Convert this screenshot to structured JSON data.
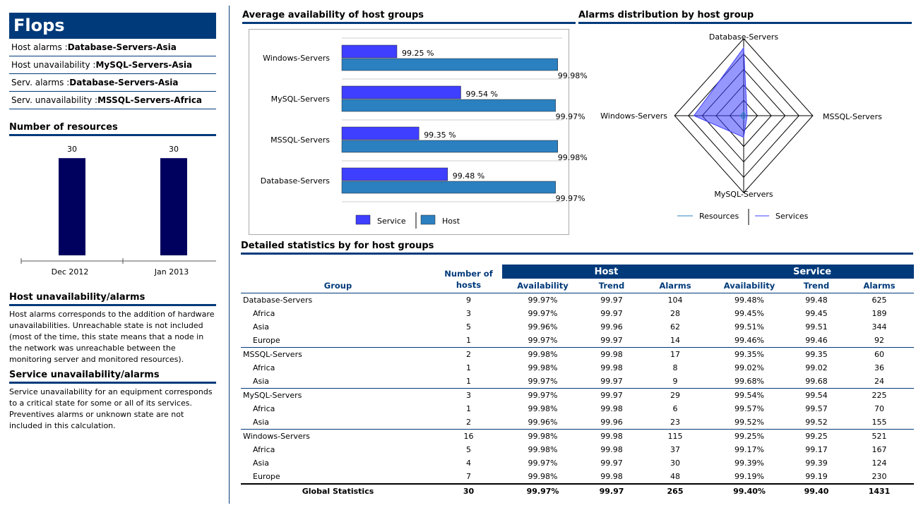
{
  "app_title": "Flops",
  "summary": [
    {
      "label": "Host alarms :",
      "value": "Database-Servers-Asia"
    },
    {
      "label": "Host unavailability :",
      "value": "MySQL-Servers-Asia"
    },
    {
      "label": "Serv. alarms :",
      "value": "Database-Servers-Asia"
    },
    {
      "label": "Serv. unavailability :",
      "value": "MSSQL-Servers-Africa"
    }
  ],
  "resources": {
    "title": "Number of resources",
    "chart_data": {
      "type": "bar",
      "categories": [
        "Dec 2012",
        "Jan 2013"
      ],
      "values": [
        30,
        30
      ],
      "color": "#00005f"
    }
  },
  "host_section": {
    "title": "Host unavailability/alarms",
    "text": "Host alarms corresponds to the addition of hardware unavailabilities. Unreachable state is not included (most of the time, this state means that a node in the network was unreachable between the monitoring server and monitored resources)."
  },
  "service_section": {
    "title": "Service unavailability/alarms",
    "text": "Service unavailability for an equipment corresponds to a critical state for some or all of its services. Preventives alarms or unknown state are not included in this calculation."
  },
  "availability": {
    "title": "Average availability of host groups",
    "chart_data": {
      "type": "bar",
      "orientation": "horizontal",
      "categories": [
        "Windows-Servers",
        "MySQL-Servers",
        "MSSQL-Servers",
        "Database-Servers"
      ],
      "series": [
        {
          "name": "Service",
          "color": "#3f3fff",
          "values": [
            99.25,
            99.54,
            99.35,
            99.48
          ],
          "labels": [
            "99.25 %",
            "99.54 %",
            "99.35 %",
            "99.48 %"
          ]
        },
        {
          "name": "Host",
          "color": "#2b80c0",
          "values": [
            99.98,
            99.97,
            99.98,
            99.97
          ],
          "labels": [
            "99.98%",
            "99.97%",
            "99.98%",
            "99.97%"
          ]
        }
      ],
      "xlim": [
        99.0,
        100.0
      ]
    }
  },
  "alarms_radar": {
    "title": "Alarms distribution by host group",
    "chart_data": {
      "type": "radar",
      "axes": [
        "Database-Servers",
        "MSSQL-Servers",
        "MySQL-Servers",
        "Windows-Servers"
      ],
      "series": [
        {
          "name": "Resources",
          "color": "#2b80c0",
          "values": [
            0.05,
            0.03,
            0.05,
            0.05
          ]
        },
        {
          "name": "Services",
          "color": "#3f3fff",
          "values": [
            0.88,
            0.05,
            0.28,
            0.72
          ]
        }
      ],
      "rings": 5
    }
  },
  "table": {
    "title": "Detailed statistics by for host groups",
    "headers": {
      "group": "Group",
      "hosts": "Number of hosts",
      "host": "Host",
      "service": "Service",
      "availability": "Availability",
      "trend": "Trend",
      "alarms": "Alarms"
    },
    "rows": [
      {
        "kind": "grp",
        "cells": [
          "Database-Servers",
          "9",
          "99.97%",
          "99.97",
          "104",
          "99.48%",
          "99.48",
          "625"
        ]
      },
      {
        "kind": "sub",
        "cells": [
          "Africa",
          "3",
          "99.97%",
          "99.97",
          "28",
          "99.45%",
          "99.45",
          "189"
        ]
      },
      {
        "kind": "sub",
        "cells": [
          "Asia",
          "5",
          "99.96%",
          "99.96",
          "62",
          "99.51%",
          "99.51",
          "344"
        ]
      },
      {
        "kind": "sub",
        "cells": [
          "Europe",
          "1",
          "99.97%",
          "99.97",
          "14",
          "99.46%",
          "99.46",
          "92"
        ]
      },
      {
        "kind": "grp2",
        "cells": [
          "MSSQL-Servers",
          "2",
          "99.98%",
          "99.98",
          "17",
          "99.35%",
          "99.35",
          "60"
        ]
      },
      {
        "kind": "sub",
        "cells": [
          "Africa",
          "1",
          "99.98%",
          "99.98",
          "8",
          "99.02%",
          "99.02",
          "36"
        ]
      },
      {
        "kind": "sub",
        "cells": [
          "Asia",
          "1",
          "99.97%",
          "99.97",
          "9",
          "99.68%",
          "99.68",
          "24"
        ]
      },
      {
        "kind": "grp2",
        "cells": [
          "MySQL-Servers",
          "3",
          "99.97%",
          "99.97",
          "29",
          "99.54%",
          "99.54",
          "225"
        ]
      },
      {
        "kind": "sub",
        "cells": [
          "Africa",
          "1",
          "99.98%",
          "99.98",
          "6",
          "99.57%",
          "99.57",
          "70"
        ]
      },
      {
        "kind": "sub",
        "cells": [
          "Asia",
          "2",
          "99.96%",
          "99.96",
          "23",
          "99.52%",
          "99.52",
          "155"
        ]
      },
      {
        "kind": "grp2",
        "cells": [
          "Windows-Servers",
          "16",
          "99.98%",
          "99.98",
          "115",
          "99.25%",
          "99.25",
          "521"
        ]
      },
      {
        "kind": "sub",
        "cells": [
          "Africa",
          "5",
          "99.98%",
          "99.98",
          "37",
          "99.17%",
          "99.17",
          "167"
        ]
      },
      {
        "kind": "sub",
        "cells": [
          "Asia",
          "4",
          "99.97%",
          "99.97",
          "30",
          "99.39%",
          "99.39",
          "124"
        ]
      },
      {
        "kind": "sub",
        "cells": [
          "Europe",
          "7",
          "99.98%",
          "99.98",
          "48",
          "99.19%",
          "99.19",
          "230"
        ]
      }
    ],
    "total": [
      "Global Statistics",
      "30",
      "99.97%",
      "99.97",
      "265",
      "99.40%",
      "99.40",
      "1431"
    ]
  }
}
